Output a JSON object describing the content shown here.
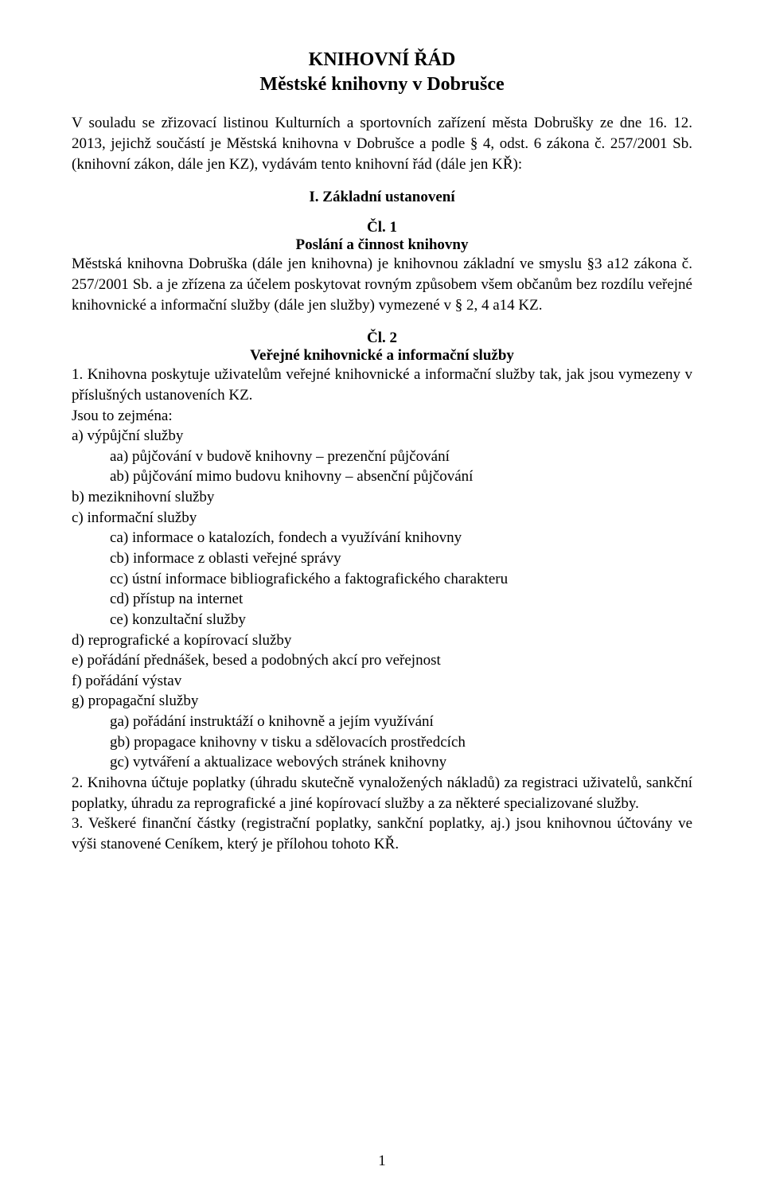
{
  "title_line1": "KNIHOVNÍ ŘÁD",
  "title_line2": "Městské knihovny v Dobrušce",
  "intro": "V souladu se zřizovací listinou Kulturních a sportovních zařízení města Dobrušky ze dne 16. 12. 2013, jejichž součástí je Městská knihovna v Dobrušce a podle § 4, odst. 6 zákona č. 257/2001 Sb. (knihovní zákon, dále jen KZ), vydávám tento knihovní řád (dále jen KŘ):",
  "section1_title": "I. Základní ustanovení",
  "art1_label": "Čl. 1",
  "art1_title": "Poslání a činnost knihovny",
  "art1_body": "Městská knihovna Dobruška (dále jen knihovna) je knihovnou základní ve smyslu §3 a12 zákona č. 257/2001 Sb. a je zřízena za účelem poskytovat rovným způsobem všem občanům bez rozdílu veřejné knihovnické a informační služby (dále jen služby) vymezené v § 2, 4 a14 KZ.",
  "art2_label": "Čl. 2",
  "art2_title": "Veřejné knihovnické a informační služby",
  "art2_para1": "1. Knihovna poskytuje uživatelům veřejné knihovnické a informační služby tak, jak jsou vymezeny v příslušných ustanoveních KZ.",
  "art2_para1_tail": "Jsou to zejména:",
  "list": {
    "a": "a) výpůjční služby",
    "aa": "aa) půjčování v budově knihovny – prezenční půjčování",
    "ab": "ab) půjčování mimo budovu knihovny – absenční půjčování",
    "b": "b) meziknihovní služby",
    "c": "c) informační služby",
    "ca": "ca) informace o katalozích, fondech a využívání knihovny",
    "cb": "cb) informace z oblasti veřejné správy",
    "cc": "cc) ústní informace bibliografického a faktografického charakteru",
    "cd": "cd) přístup na internet",
    "ce": "ce) konzultační služby",
    "d": "d) reprografické a kopírovací služby",
    "e": "e) pořádání přednášek, besed a podobných akcí pro veřejnost",
    "f": "f) pořádání výstav",
    "g": "g) propagační služby",
    "ga": "ga) pořádání instruktáží o knihovně a jejím využívání",
    "gb": "gb) propagace knihovny v tisku a sdělovacích prostředcích",
    "gc": "gc) vytváření a aktualizace webových stránek knihovny"
  },
  "art2_para2": "2. Knihovna účtuje poplatky (úhradu skutečně vynaložených nákladů) za registraci uživatelů, sankční poplatky, úhradu za reprografické a jiné kopírovací služby a za některé specializované služby.",
  "art2_para3": "3. Veškeré finanční částky (registrační poplatky, sankční poplatky, aj.) jsou knihovnou účtovány ve výši stanovené Ceníkem, který je přílohou tohoto KŘ.",
  "page_number": "1",
  "colors": {
    "text": "#000000",
    "background": "#ffffff"
  },
  "typography": {
    "title_fontsize": 24,
    "body_fontsize": 19,
    "font_family": "Times New Roman"
  }
}
